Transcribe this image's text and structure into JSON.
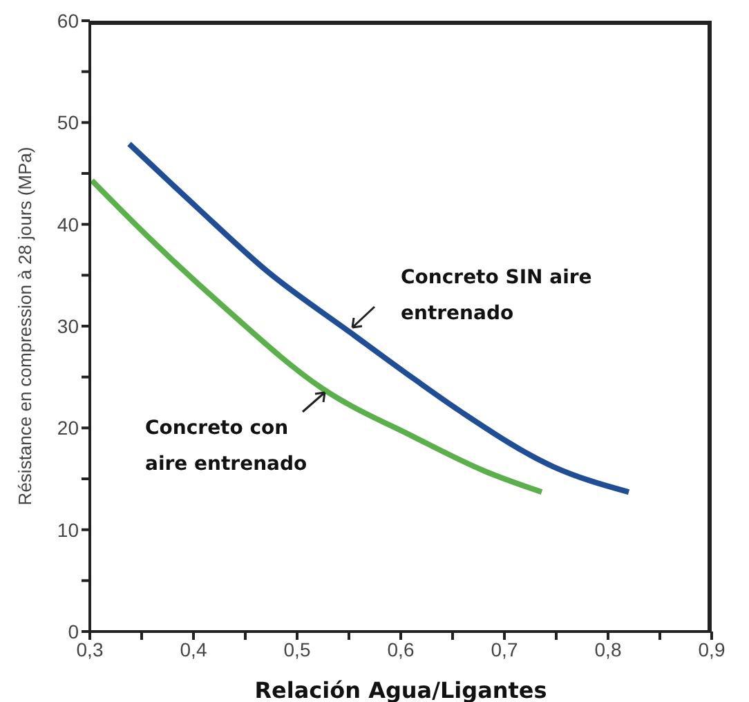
{
  "chart_data": {
    "type": "line",
    "xlabel": "Relación Agua/Ligantes",
    "ylabel": "Résistance en compression à 28 jours (MPa)",
    "series": [
      {
        "name": "Concreto SIN aire entrenado",
        "color": "#1f4e96",
        "x": [
          0.338,
          0.404,
          0.471,
          0.551,
          0.613,
          0.658,
          0.747,
          0.82
        ],
        "values": [
          47.9,
          41.6,
          35.4,
          29.4,
          24.8,
          21.6,
          16.2,
          13.7
        ]
      },
      {
        "name": "Concreto con aire entrenado",
        "color": "#5cb04c",
        "x": [
          0.302,
          0.36,
          0.427,
          0.524,
          0.613,
          0.68,
          0.736
        ],
        "values": [
          44.3,
          38.4,
          32.1,
          23.9,
          19.1,
          15.8,
          13.7
        ]
      }
    ],
    "xlim": [
      0.3,
      0.9
    ],
    "xticks": [
      {
        "value": 0.3,
        "label": "0,3"
      },
      {
        "value": 0.35,
        "label": null
      },
      {
        "value": 0.4,
        "label": "0,4"
      },
      {
        "value": 0.45,
        "label": null
      },
      {
        "value": 0.5,
        "label": "0,5"
      },
      {
        "value": 0.55,
        "label": null
      },
      {
        "value": 0.6,
        "label": "0,6"
      },
      {
        "value": 0.65,
        "label": null
      },
      {
        "value": 0.7,
        "label": "0,7"
      },
      {
        "value": 0.75,
        "label": null
      },
      {
        "value": 0.8,
        "label": "0,8"
      },
      {
        "value": 0.85,
        "label": null
      },
      {
        "value": 0.9,
        "label": "0,9"
      }
    ],
    "ylim": [
      0,
      60
    ],
    "yticks": [
      0,
      {
        "value": 5,
        "label": null
      },
      10,
      {
        "value": 15,
        "label": null
      },
      20,
      {
        "value": 25,
        "label": null
      },
      30,
      {
        "value": 35,
        "label": null
      },
      40,
      {
        "value": 45,
        "label": null
      },
      50,
      {
        "value": 55,
        "label": null
      },
      60
    ],
    "grid": false,
    "legend": false,
    "marker": "none",
    "line_style": "solid"
  }
}
